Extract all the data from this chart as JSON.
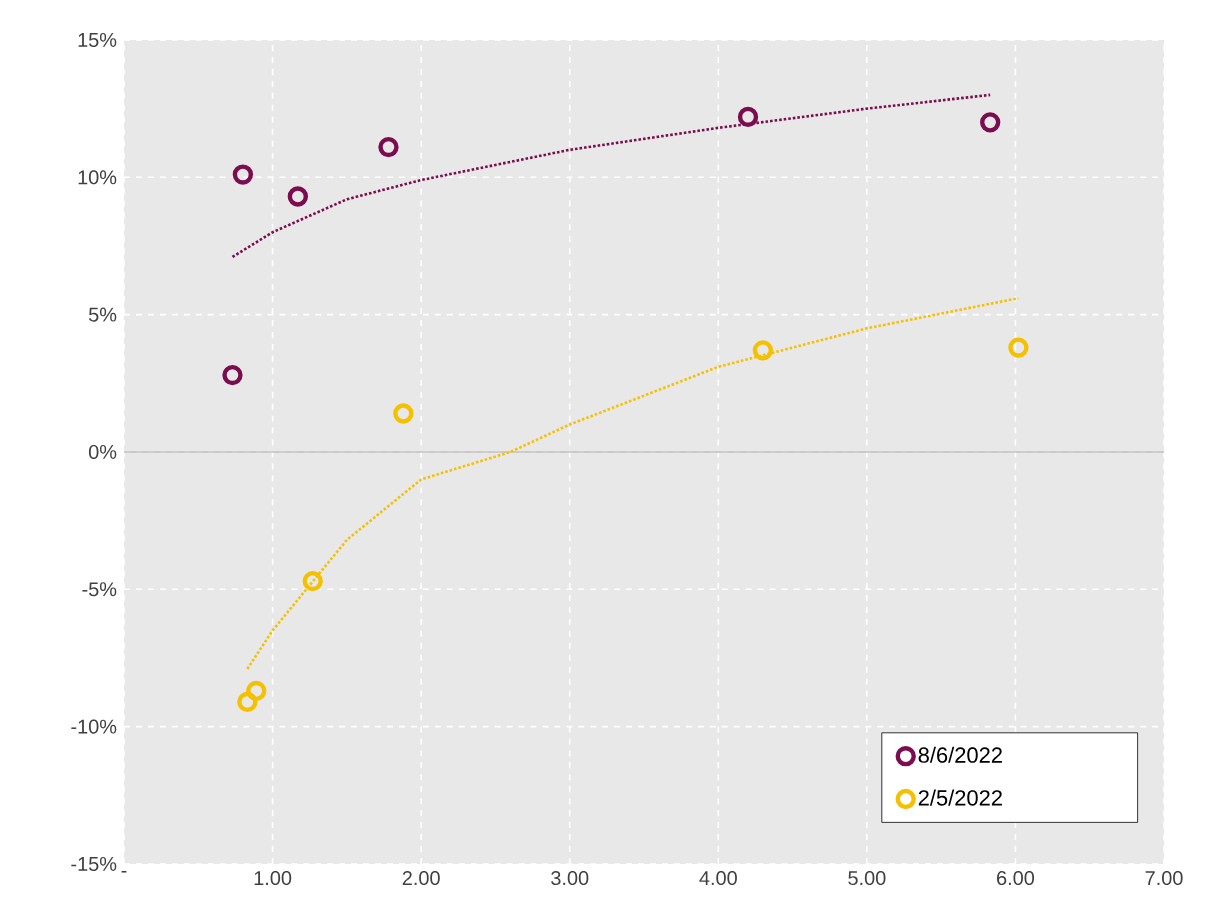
{
  "chart_data": {
    "type": "scatter",
    "xlim": [
      0,
      7
    ],
    "ylim": [
      -15,
      15
    ],
    "xticks": [
      {
        "value": 0,
        "label": "-"
      },
      {
        "value": 1,
        "label": "1.00"
      },
      {
        "value": 2,
        "label": "2.00"
      },
      {
        "value": 3,
        "label": "3.00"
      },
      {
        "value": 4,
        "label": "4.00"
      },
      {
        "value": 5,
        "label": "5.00"
      },
      {
        "value": 6,
        "label": "6.00"
      },
      {
        "value": 7,
        "label": "7.00"
      }
    ],
    "yticks": [
      {
        "value": -15,
        "label": "-15%"
      },
      {
        "value": -10,
        "label": "-10%"
      },
      {
        "value": -5,
        "label": "-5%"
      },
      {
        "value": 0,
        "label": "0%"
      },
      {
        "value": 5,
        "label": "5%"
      },
      {
        "value": 10,
        "label": "10%"
      },
      {
        "value": 15,
        "label": "15%"
      }
    ],
    "grid": true,
    "legend": "bottom right",
    "ref_lines": [
      {
        "axis": "y",
        "value": 0,
        "color": "#bfbfbf"
      }
    ],
    "series": [
      {
        "name": "8/6/2022",
        "marker": "circle",
        "color": "#7b0c4f",
        "x": [
          0.73,
          0.8,
          1.17,
          1.78,
          4.2,
          5.83
        ],
        "values": [
          2.8,
          10.1,
          9.3,
          11.1,
          12.2,
          12.0
        ]
      },
      {
        "name": "2/5/2022",
        "marker": "circle",
        "color": "#f5c000",
        "x": [
          0.83,
          0.89,
          1.27,
          1.88,
          4.3,
          6.02
        ],
        "values": [
          -9.1,
          -8.7,
          -4.7,
          1.4,
          3.7,
          3.8
        ]
      },
      {
        "type": "line",
        "line_style": "dotted",
        "color": "#7b0c4f",
        "x": [
          0.73,
          1.0,
          1.5,
          2.0,
          3.0,
          4.0,
          5.0,
          5.83
        ],
        "values": [
          7.1,
          8.0,
          9.2,
          9.9,
          11.0,
          11.8,
          12.5,
          13.0
        ]
      },
      {
        "type": "line",
        "line_style": "dotted",
        "color": "#f5c000",
        "x": [
          0.83,
          1.0,
          1.5,
          2.0,
          2.6,
          3.0,
          4.0,
          5.0,
          6.02
        ],
        "values": [
          -7.9,
          -6.5,
          -3.2,
          -1.0,
          0.0,
          1.0,
          3.1,
          4.5,
          5.6
        ]
      }
    ]
  }
}
